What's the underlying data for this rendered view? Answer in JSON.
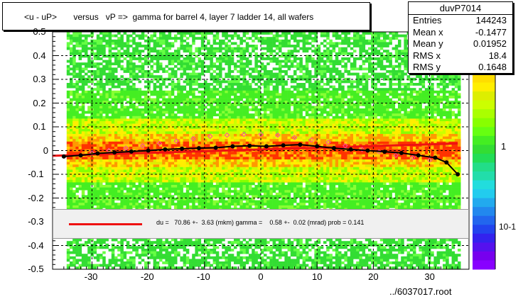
{
  "title": "<u - uP>       versus   vP =>  gamma for barrel 4, layer 7 ladder 14, all wafers",
  "stats": {
    "name": "duvP7014",
    "rows": [
      {
        "key": "Entries",
        "value": "144243"
      },
      {
        "key": "Mean x",
        "value": "-0.1477"
      },
      {
        "key": "Mean y",
        "value": "0.01952"
      },
      {
        "key": "RMS x",
        "value": "18.4"
      },
      {
        "key": "RMS y",
        "value": "0.1648"
      }
    ]
  },
  "fit_text": "du =   70.86 +-  3.63 (mkm) gamma =    0.58 +-  0.02 (mrad) prob = 0.141",
  "file_label": "../6037017.root",
  "colors": {
    "fit_line": "#ee1111",
    "profile": "#000000",
    "markers": "#ff44aa"
  },
  "chart_data": {
    "type": "heatmap",
    "x_range": [
      -37,
      37
    ],
    "y_range": [
      -0.5,
      0.5
    ],
    "x_ticks": [
      "-30",
      "-20",
      "-10",
      "0",
      "10",
      "20",
      "30"
    ],
    "y_ticks": [
      "-0.5",
      "-0.4",
      "-0.3",
      "-0.2",
      "-0.1",
      "0",
      "0.1",
      "0.2",
      "0.3",
      "0.4",
      "0.5"
    ],
    "z_scale_labels": [
      "1",
      "10-1"
    ],
    "profile": {
      "x": [
        -35,
        -32,
        -29,
        -26,
        -23,
        -20,
        -17,
        -14,
        -11,
        -8,
        -5,
        -2,
        1,
        4,
        7,
        10,
        13,
        16,
        19,
        22,
        25,
        28,
        31,
        33,
        35
      ],
      "y": [
        -0.025,
        -0.02,
        -0.012,
        -0.008,
        -0.004,
        0.0,
        0.005,
        0.008,
        0.01,
        0.012,
        0.018,
        0.02,
        0.018,
        0.022,
        0.025,
        0.018,
        0.01,
        0.005,
        0.0,
        -0.005,
        -0.01,
        -0.02,
        -0.03,
        -0.05,
        -0.1
      ]
    },
    "markers": {
      "x": [
        -30,
        -27,
        -24,
        -21,
        -18,
        -15,
        -12,
        -9,
        -6,
        -3,
        0,
        3,
        6,
        9,
        12,
        15,
        18,
        21,
        24,
        27,
        30
      ],
      "y": [
        -0.01,
        0.0,
        0.01,
        0.02,
        0.03,
        0.04,
        0.05,
        0.06,
        0.065,
        0.068,
        0.068,
        0.065,
        0.055,
        0.045,
        0.035,
        0.02,
        0.005,
        -0.005,
        -0.02,
        -0.03,
        -0.04
      ]
    },
    "fit_line": {
      "x": [
        -37,
        35
      ],
      "y": [
        -0.022,
        0.03
      ]
    }
  }
}
